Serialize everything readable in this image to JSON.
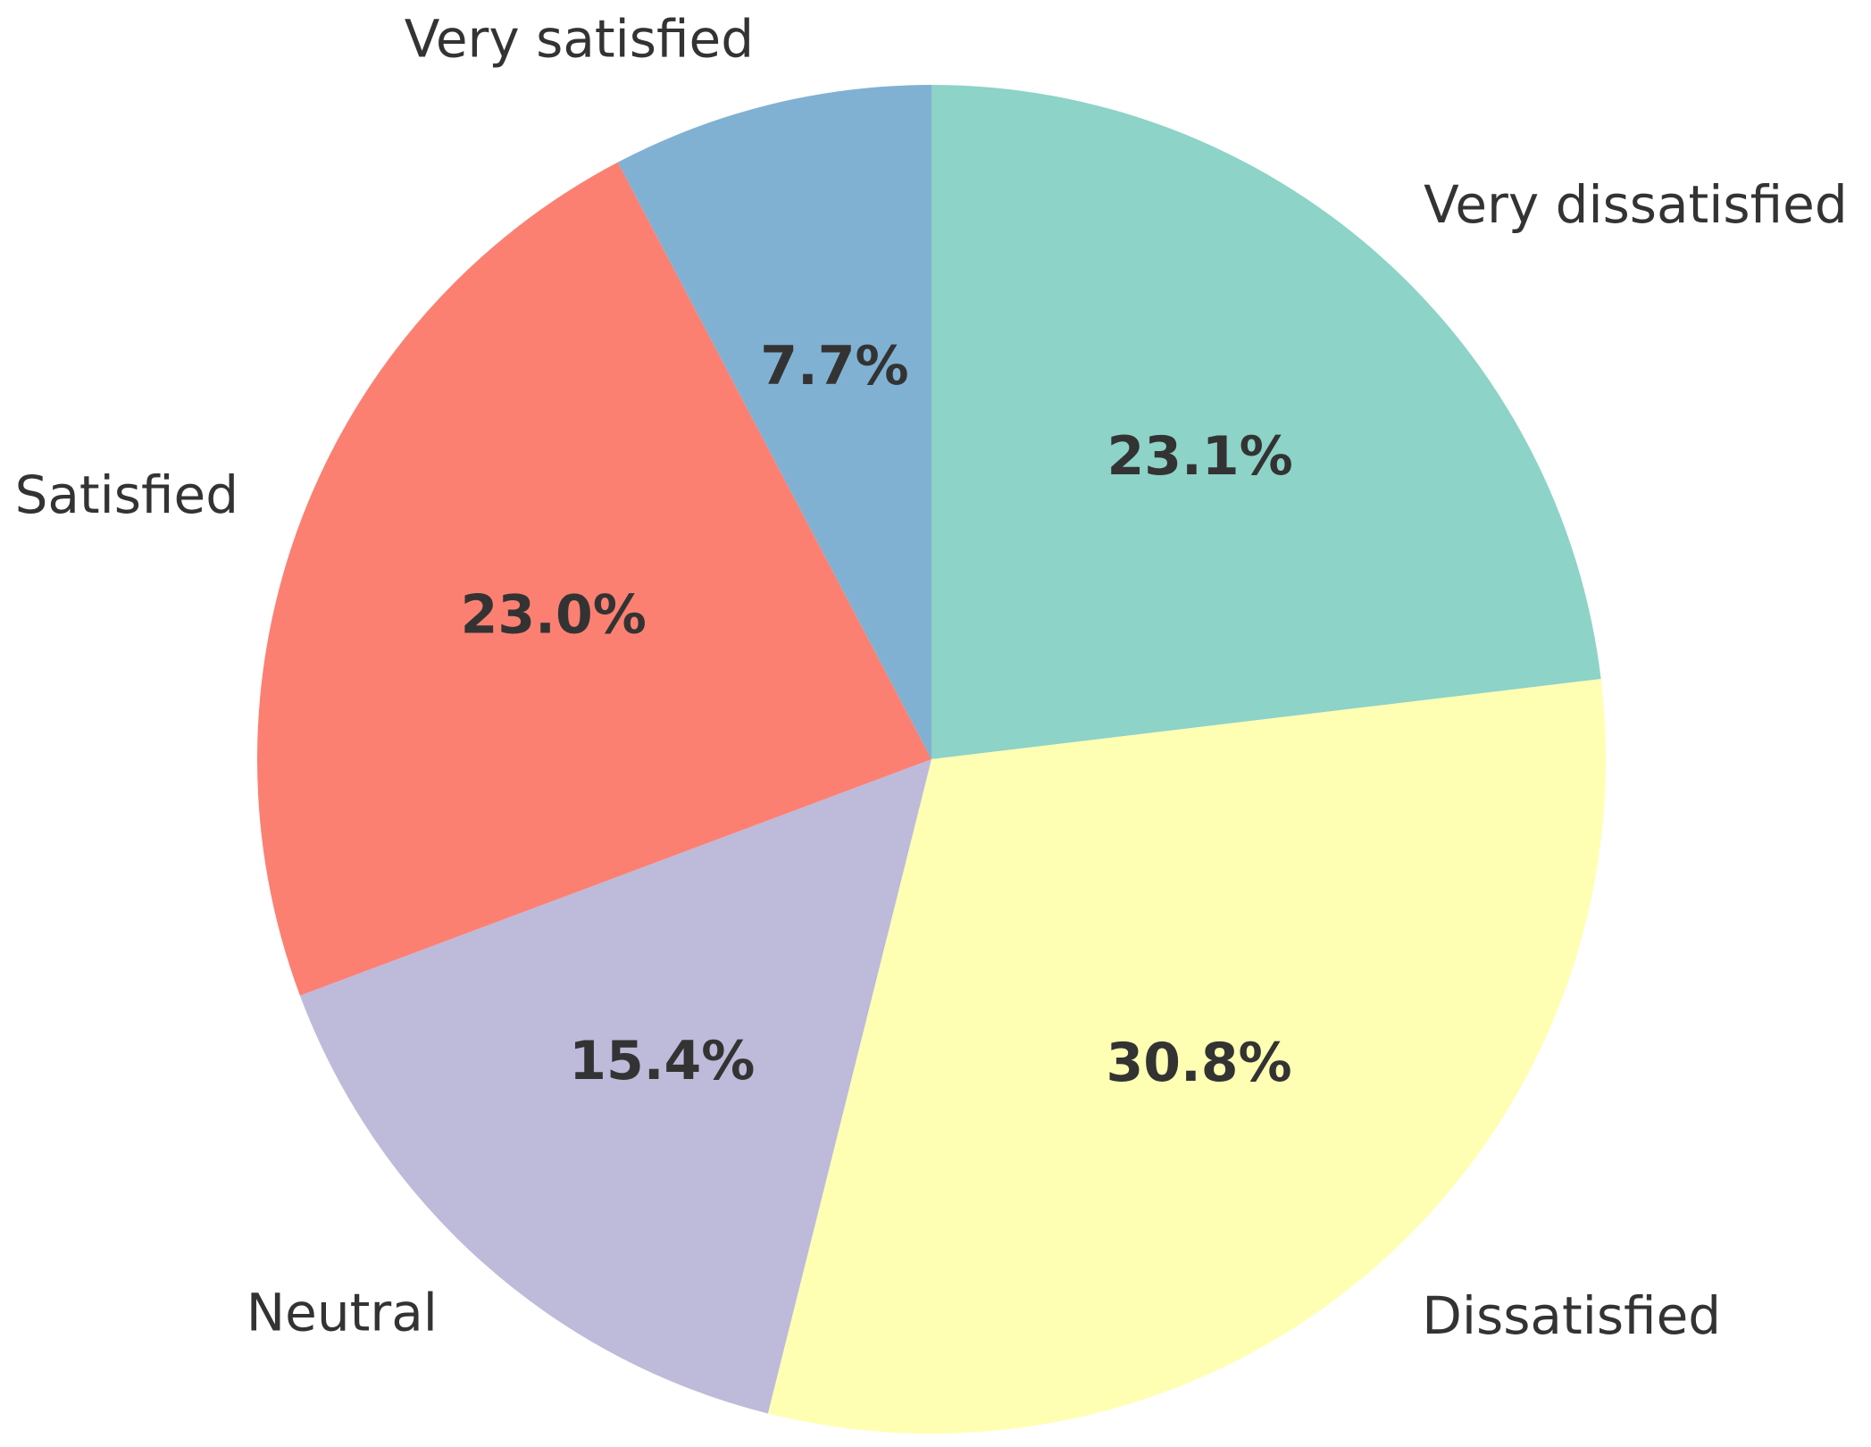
{
  "chart_data": {
    "type": "pie",
    "title": "",
    "categories": [
      "Very dissatisfied",
      "Dissatisfied",
      "Neutral",
      "Satisfied",
      "Very satisfied"
    ],
    "values": [
      23.1,
      30.8,
      15.4,
      23.0,
      7.7
    ],
    "labels": [
      "23.1%",
      "30.8%",
      "15.4%",
      "23.0%",
      "7.7%"
    ],
    "colors": [
      "#8dd3c7",
      "#ffffb3",
      "#bebada",
      "#fb8072",
      "#80b1d3"
    ],
    "start_angle_deg": 90,
    "direction": "clockwise",
    "legend": "none"
  }
}
